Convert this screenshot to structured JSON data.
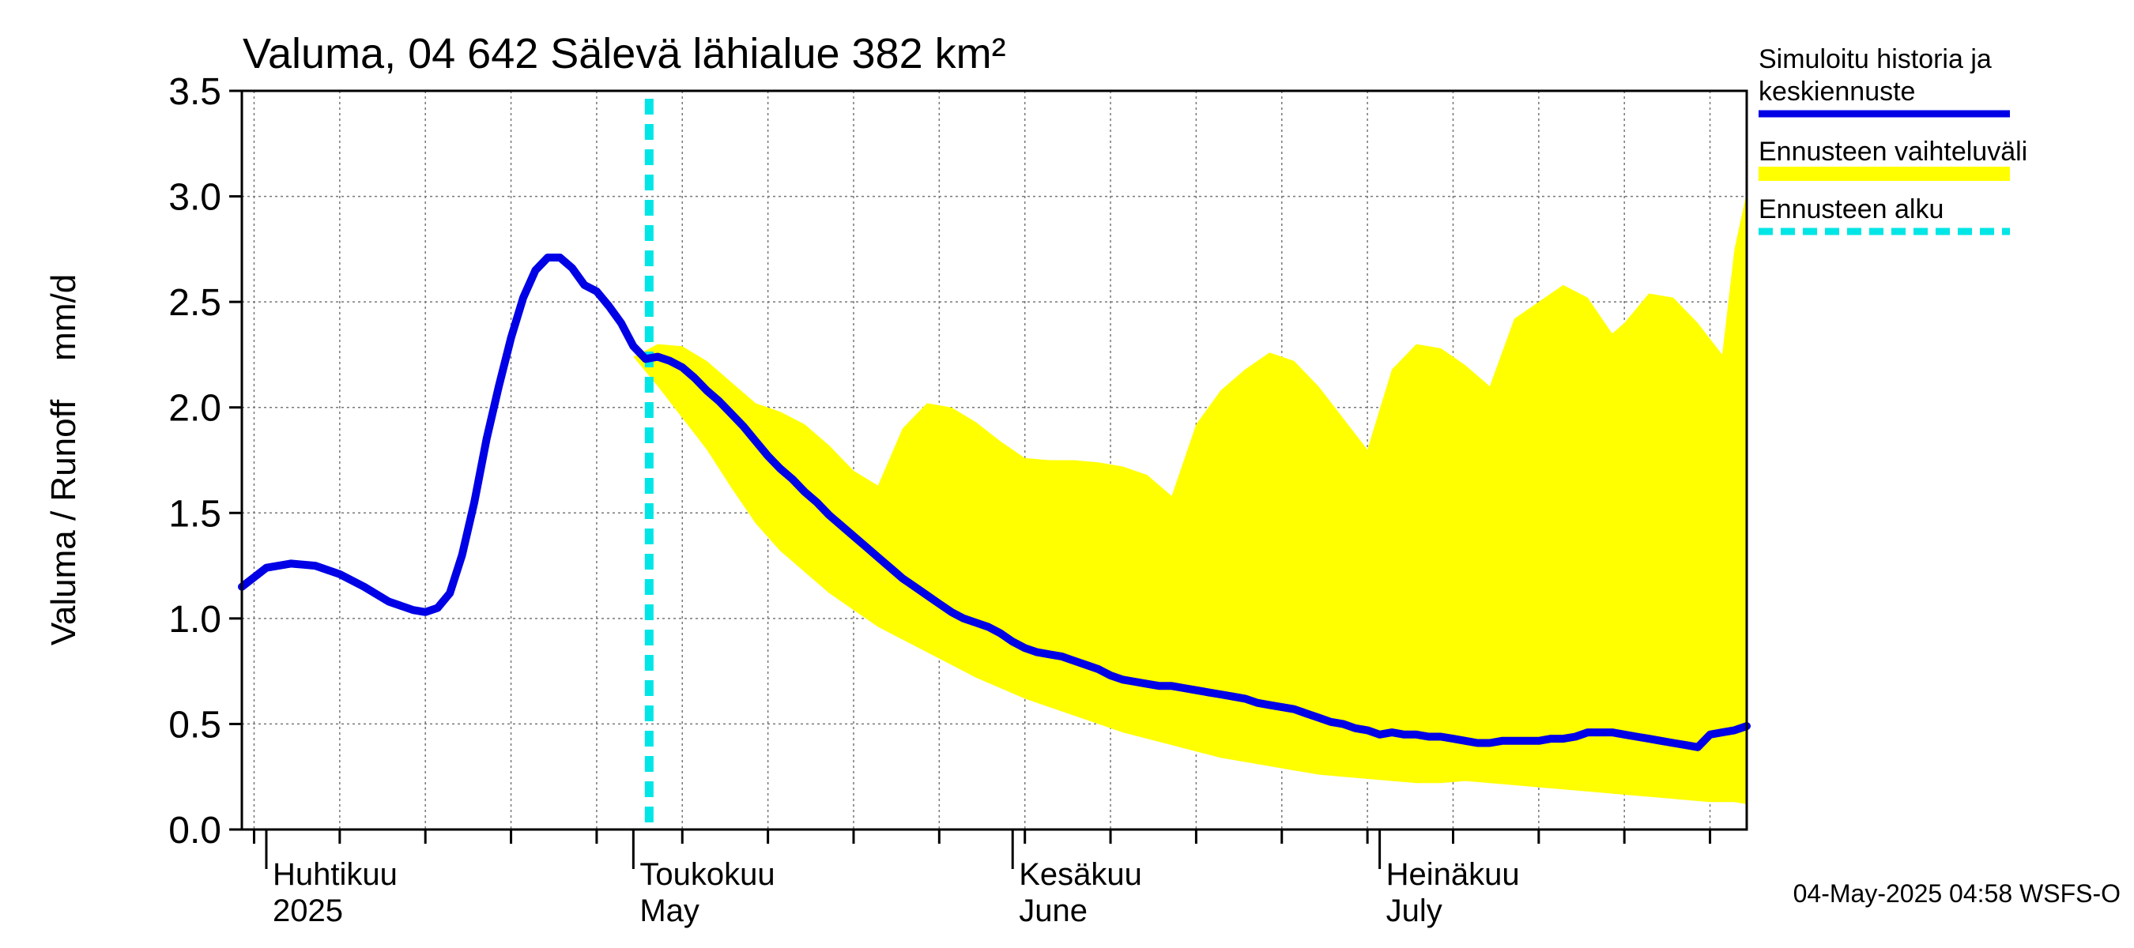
{
  "chart_data": {
    "type": "line",
    "title": "Valuma, 04 642 Sälevä lähialue 382 km²",
    "ylabel": "Valuma / Runoff    mm/d",
    "ylim": [
      0,
      3.5
    ],
    "yticks": [
      "0.0",
      "0.5",
      "1.0",
      "1.5",
      "2.0",
      "2.5",
      "3.0",
      "3.5"
    ],
    "x_range": [
      "2025-03-30",
      "2025-07-31"
    ],
    "month_labels": [
      {
        "date": "2025-04-01",
        "line1": "Huhtikuu",
        "line2": "2025"
      },
      {
        "date": "2025-05-01",
        "line1": "Toukokuu",
        "line2": "May"
      },
      {
        "date": "2025-06-01",
        "line1": "Kesäkuu",
        "line2": "June"
      },
      {
        "date": "2025-07-01",
        "line1": "Heinäkuu",
        "line2": "July"
      }
    ],
    "forecast_start": "2025-05-01",
    "grid": true,
    "legend_position": "right",
    "legend": [
      {
        "label_line1": "Simuloitu historia ja",
        "label_line2": "keskiennuste",
        "color": "#0000e6",
        "style": "solid"
      },
      {
        "label_line1": "Ennusteen vaihteluväli",
        "label_line2": "",
        "color": "#ffff00",
        "style": "band"
      },
      {
        "label_line1": "Ennusteen alku",
        "label_line2": "",
        "color": "#00e5e5",
        "style": "dashed"
      }
    ],
    "series": [
      {
        "role": "history-and-mean",
        "color": "#0000e6",
        "points": [
          [
            "2025-03-30",
            1.15
          ],
          [
            "2025-04-01",
            1.24
          ],
          [
            "2025-04-03",
            1.26
          ],
          [
            "2025-04-05",
            1.25
          ],
          [
            "2025-04-07",
            1.21
          ],
          [
            "2025-04-09",
            1.15
          ],
          [
            "2025-04-11",
            1.08
          ],
          [
            "2025-04-13",
            1.04
          ],
          [
            "2025-04-14",
            1.03
          ],
          [
            "2025-04-15",
            1.05
          ],
          [
            "2025-04-16",
            1.12
          ],
          [
            "2025-04-17",
            1.3
          ],
          [
            "2025-04-18",
            1.55
          ],
          [
            "2025-04-19",
            1.85
          ],
          [
            "2025-04-20",
            2.1
          ],
          [
            "2025-04-21",
            2.33
          ],
          [
            "2025-04-22",
            2.52
          ],
          [
            "2025-04-23",
            2.65
          ],
          [
            "2025-04-24",
            2.71
          ],
          [
            "2025-04-25",
            2.71
          ],
          [
            "2025-04-26",
            2.66
          ],
          [
            "2025-04-27",
            2.58
          ],
          [
            "2025-04-28",
            2.55
          ],
          [
            "2025-04-29",
            2.48
          ],
          [
            "2025-04-30",
            2.4
          ],
          [
            "2025-05-01",
            2.29
          ],
          [
            "2025-05-02",
            2.23
          ],
          [
            "2025-05-03",
            2.24
          ],
          [
            "2025-05-04",
            2.22
          ],
          [
            "2025-05-05",
            2.19
          ],
          [
            "2025-05-06",
            2.14
          ],
          [
            "2025-05-07",
            2.08
          ],
          [
            "2025-05-08",
            2.03
          ],
          [
            "2025-05-09",
            1.97
          ],
          [
            "2025-05-10",
            1.91
          ],
          [
            "2025-05-11",
            1.84
          ],
          [
            "2025-05-12",
            1.77
          ],
          [
            "2025-05-13",
            1.71
          ],
          [
            "2025-05-14",
            1.66
          ],
          [
            "2025-05-15",
            1.6
          ],
          [
            "2025-05-16",
            1.55
          ],
          [
            "2025-05-17",
            1.49
          ],
          [
            "2025-05-18",
            1.44
          ],
          [
            "2025-05-19",
            1.39
          ],
          [
            "2025-05-20",
            1.34
          ],
          [
            "2025-05-21",
            1.29
          ],
          [
            "2025-05-22",
            1.24
          ],
          [
            "2025-05-23",
            1.19
          ],
          [
            "2025-05-24",
            1.15
          ],
          [
            "2025-05-25",
            1.11
          ],
          [
            "2025-05-26",
            1.07
          ],
          [
            "2025-05-27",
            1.03
          ],
          [
            "2025-05-28",
            1.0
          ],
          [
            "2025-05-29",
            0.98
          ],
          [
            "2025-05-30",
            0.96
          ],
          [
            "2025-05-31",
            0.93
          ],
          [
            "2025-06-01",
            0.89
          ],
          [
            "2025-06-02",
            0.86
          ],
          [
            "2025-06-03",
            0.84
          ],
          [
            "2025-06-04",
            0.83
          ],
          [
            "2025-06-05",
            0.82
          ],
          [
            "2025-06-06",
            0.8
          ],
          [
            "2025-06-07",
            0.78
          ],
          [
            "2025-06-08",
            0.76
          ],
          [
            "2025-06-09",
            0.73
          ],
          [
            "2025-06-10",
            0.71
          ],
          [
            "2025-06-11",
            0.7
          ],
          [
            "2025-06-12",
            0.69
          ],
          [
            "2025-06-13",
            0.68
          ],
          [
            "2025-06-14",
            0.68
          ],
          [
            "2025-06-15",
            0.67
          ],
          [
            "2025-06-16",
            0.66
          ],
          [
            "2025-06-17",
            0.65
          ],
          [
            "2025-06-18",
            0.64
          ],
          [
            "2025-06-19",
            0.63
          ],
          [
            "2025-06-20",
            0.62
          ],
          [
            "2025-06-21",
            0.6
          ],
          [
            "2025-06-22",
            0.59
          ],
          [
            "2025-06-23",
            0.58
          ],
          [
            "2025-06-24",
            0.57
          ],
          [
            "2025-06-25",
            0.55
          ],
          [
            "2025-06-26",
            0.53
          ],
          [
            "2025-06-27",
            0.51
          ],
          [
            "2025-06-28",
            0.5
          ],
          [
            "2025-06-29",
            0.48
          ],
          [
            "2025-06-30",
            0.47
          ],
          [
            "2025-07-01",
            0.45
          ],
          [
            "2025-07-02",
            0.46
          ],
          [
            "2025-07-03",
            0.45
          ],
          [
            "2025-07-04",
            0.45
          ],
          [
            "2025-07-05",
            0.44
          ],
          [
            "2025-07-06",
            0.44
          ],
          [
            "2025-07-07",
            0.43
          ],
          [
            "2025-07-08",
            0.42
          ],
          [
            "2025-07-09",
            0.41
          ],
          [
            "2025-07-10",
            0.41
          ],
          [
            "2025-07-11",
            0.42
          ],
          [
            "2025-07-12",
            0.42
          ],
          [
            "2025-07-13",
            0.42
          ],
          [
            "2025-07-14",
            0.42
          ],
          [
            "2025-07-15",
            0.43
          ],
          [
            "2025-07-16",
            0.43
          ],
          [
            "2025-07-17",
            0.44
          ],
          [
            "2025-07-18",
            0.46
          ],
          [
            "2025-07-19",
            0.46
          ],
          [
            "2025-07-20",
            0.46
          ],
          [
            "2025-07-21",
            0.45
          ],
          [
            "2025-07-22",
            0.44
          ],
          [
            "2025-07-23",
            0.43
          ],
          [
            "2025-07-24",
            0.42
          ],
          [
            "2025-07-25",
            0.41
          ],
          [
            "2025-07-26",
            0.4
          ],
          [
            "2025-07-27",
            0.39
          ],
          [
            "2025-07-28",
            0.45
          ],
          [
            "2025-07-29",
            0.46
          ],
          [
            "2025-07-30",
            0.47
          ],
          [
            "2025-07-31",
            0.49
          ]
        ]
      }
    ],
    "band": {
      "role": "forecast-range",
      "color": "#ffff00",
      "upper": [
        [
          "2025-05-01",
          2.24
        ],
        [
          "2025-05-03",
          2.3
        ],
        [
          "2025-05-05",
          2.29
        ],
        [
          "2025-05-07",
          2.22
        ],
        [
          "2025-05-09",
          2.12
        ],
        [
          "2025-05-11",
          2.02
        ],
        [
          "2025-05-13",
          1.98
        ],
        [
          "2025-05-15",
          1.92
        ],
        [
          "2025-05-17",
          1.82
        ],
        [
          "2025-05-19",
          1.7
        ],
        [
          "2025-05-21",
          1.63
        ],
        [
          "2025-05-23",
          1.9
        ],
        [
          "2025-05-25",
          2.02
        ],
        [
          "2025-05-27",
          2.0
        ],
        [
          "2025-05-29",
          1.93
        ],
        [
          "2025-05-31",
          1.84
        ],
        [
          "2025-06-02",
          1.76
        ],
        [
          "2025-06-04",
          1.75
        ],
        [
          "2025-06-06",
          1.75
        ],
        [
          "2025-06-08",
          1.74
        ],
        [
          "2025-06-10",
          1.72
        ],
        [
          "2025-06-12",
          1.68
        ],
        [
          "2025-06-14",
          1.58
        ],
        [
          "2025-06-16",
          1.92
        ],
        [
          "2025-06-18",
          2.08
        ],
        [
          "2025-06-20",
          2.18
        ],
        [
          "2025-06-22",
          2.26
        ],
        [
          "2025-06-24",
          2.22
        ],
        [
          "2025-06-26",
          2.1
        ],
        [
          "2025-06-28",
          1.95
        ],
        [
          "2025-06-30",
          1.8
        ],
        [
          "2025-07-02",
          2.18
        ],
        [
          "2025-07-04",
          2.3
        ],
        [
          "2025-07-06",
          2.28
        ],
        [
          "2025-07-08",
          2.2
        ],
        [
          "2025-07-10",
          2.1
        ],
        [
          "2025-07-12",
          2.42
        ],
        [
          "2025-07-14",
          2.5
        ],
        [
          "2025-07-16",
          2.58
        ],
        [
          "2025-07-18",
          2.52
        ],
        [
          "2025-07-20",
          2.35
        ],
        [
          "2025-07-21",
          2.4
        ],
        [
          "2025-07-23",
          2.54
        ],
        [
          "2025-07-25",
          2.52
        ],
        [
          "2025-07-27",
          2.4
        ],
        [
          "2025-07-29",
          2.25
        ],
        [
          "2025-07-30",
          2.75
        ],
        [
          "2025-07-31",
          3.02
        ]
      ],
      "lower": [
        [
          "2025-05-01",
          2.24
        ],
        [
          "2025-05-03",
          2.1
        ],
        [
          "2025-05-05",
          1.95
        ],
        [
          "2025-05-07",
          1.8
        ],
        [
          "2025-05-09",
          1.62
        ],
        [
          "2025-05-11",
          1.45
        ],
        [
          "2025-05-13",
          1.32
        ],
        [
          "2025-05-15",
          1.22
        ],
        [
          "2025-05-17",
          1.12
        ],
        [
          "2025-05-19",
          1.04
        ],
        [
          "2025-05-21",
          0.96
        ],
        [
          "2025-05-23",
          0.9
        ],
        [
          "2025-05-25",
          0.84
        ],
        [
          "2025-05-27",
          0.78
        ],
        [
          "2025-05-29",
          0.72
        ],
        [
          "2025-05-31",
          0.67
        ],
        [
          "2025-06-02",
          0.62
        ],
        [
          "2025-06-04",
          0.58
        ],
        [
          "2025-06-06",
          0.54
        ],
        [
          "2025-06-08",
          0.5
        ],
        [
          "2025-06-10",
          0.46
        ],
        [
          "2025-06-12",
          0.43
        ],
        [
          "2025-06-14",
          0.4
        ],
        [
          "2025-06-16",
          0.37
        ],
        [
          "2025-06-18",
          0.34
        ],
        [
          "2025-06-20",
          0.32
        ],
        [
          "2025-06-22",
          0.3
        ],
        [
          "2025-06-24",
          0.28
        ],
        [
          "2025-06-26",
          0.26
        ],
        [
          "2025-06-28",
          0.25
        ],
        [
          "2025-06-30",
          0.24
        ],
        [
          "2025-07-02",
          0.23
        ],
        [
          "2025-07-04",
          0.22
        ],
        [
          "2025-07-06",
          0.22
        ],
        [
          "2025-07-08",
          0.23
        ],
        [
          "2025-07-10",
          0.22
        ],
        [
          "2025-07-12",
          0.21
        ],
        [
          "2025-07-14",
          0.2
        ],
        [
          "2025-07-16",
          0.19
        ],
        [
          "2025-07-18",
          0.18
        ],
        [
          "2025-07-20",
          0.17
        ],
        [
          "2025-07-22",
          0.16
        ],
        [
          "2025-07-24",
          0.15
        ],
        [
          "2025-07-26",
          0.14
        ],
        [
          "2025-07-28",
          0.13
        ],
        [
          "2025-07-30",
          0.13
        ],
        [
          "2025-07-31",
          0.12
        ]
      ]
    }
  },
  "footer": {
    "timestamp": "04-May-2025 04:58 WSFS-O"
  }
}
